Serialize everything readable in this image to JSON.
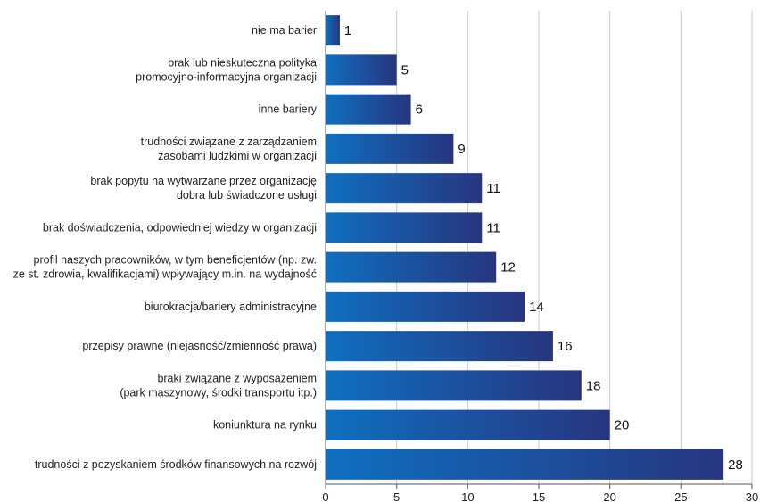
{
  "chart_data": {
    "type": "bar",
    "orientation": "horizontal",
    "categories": [
      [
        "nie ma barier"
      ],
      [
        "brak lub nieskuteczna polityka",
        "promocyjno-informacyjna organizacji"
      ],
      [
        "inne bariery"
      ],
      [
        "trudności związane z zarządzaniem",
        "zasobami ludzkimi w organizacji"
      ],
      [
        "brak popytu na wytwarzane przez organizację",
        "dobra lub świadczone usługi"
      ],
      [
        "brak doświadczenia, odpowiedniej wiedzy w organizacji"
      ],
      [
        "profil naszych pracowników, w tym beneficjentów (np. zw.",
        "ze st. zdrowia, kwalifikacjami) wpływający m.in. na wydajność"
      ],
      [
        "biurokracja/bariery administracyjne"
      ],
      [
        "przepisy prawne (niejasność/zmienność prawa)"
      ],
      [
        "braki związane z wyposażeniem",
        "(park maszynowy, środki transportu itp.)"
      ],
      [
        "koniunktura na rynku"
      ],
      [
        "trudności z pozyskaniem środków finansowych na rozwój"
      ]
    ],
    "values": [
      1,
      5,
      6,
      9,
      11,
      11,
      12,
      14,
      16,
      18,
      20,
      28
    ],
    "xlim": [
      0,
      30
    ],
    "xticks": [
      0,
      5,
      10,
      15,
      20,
      25,
      30
    ],
    "grid": "vertical",
    "bar_gradient": [
      "#0f6fc0",
      "#27357f"
    ],
    "title": "",
    "xlabel": "",
    "ylabel": ""
  }
}
